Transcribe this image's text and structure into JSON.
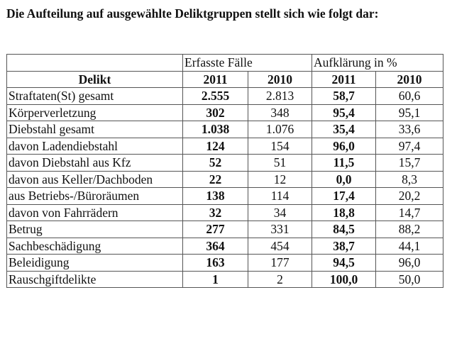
{
  "title": "Die Aufteilung auf ausgewählte Deliktgruppen stellt sich wie folgt dar:",
  "table": {
    "group_headers": [
      "Erfasste Fälle",
      "Aufklärung in %"
    ],
    "columns": [
      "Delikt",
      "2011",
      "2010",
      "2011",
      "2010"
    ],
    "rows": [
      [
        "Straftaten(St) gesamt",
        "2.555",
        "2.813",
        "58,7",
        "60,6"
      ],
      [
        "Körperverletzung",
        "302",
        "348",
        "95,4",
        "95,1"
      ],
      [
        "Diebstahl gesamt",
        "1.038",
        "1.076",
        "35,4",
        "33,6"
      ],
      [
        "davon Ladendiebstahl",
        "124",
        "154",
        "96,0",
        "97,4"
      ],
      [
        "davon Diebstahl aus Kfz",
        "52",
        "51",
        "11,5",
        "15,7"
      ],
      [
        "davon aus Keller/Dachboden",
        "22",
        "12",
        "0,0",
        "8,3"
      ],
      [
        "aus Betriebs-/Büroräumen",
        "138",
        "114",
        "17,4",
        "20,2"
      ],
      [
        "davon von Fahrrädern",
        "32",
        "34",
        "18,8",
        "14,7"
      ],
      [
        "Betrug",
        "277",
        "331",
        "84,5",
        "88,2"
      ],
      [
        "Sachbeschädigung",
        "364",
        "454",
        "38,7",
        "44,1"
      ],
      [
        "Beleidigung",
        "163",
        "177",
        "94,5",
        "96,0"
      ],
      [
        "Rauschgiftdelikte",
        "1",
        "2",
        "100,0",
        "50,0"
      ]
    ]
  }
}
